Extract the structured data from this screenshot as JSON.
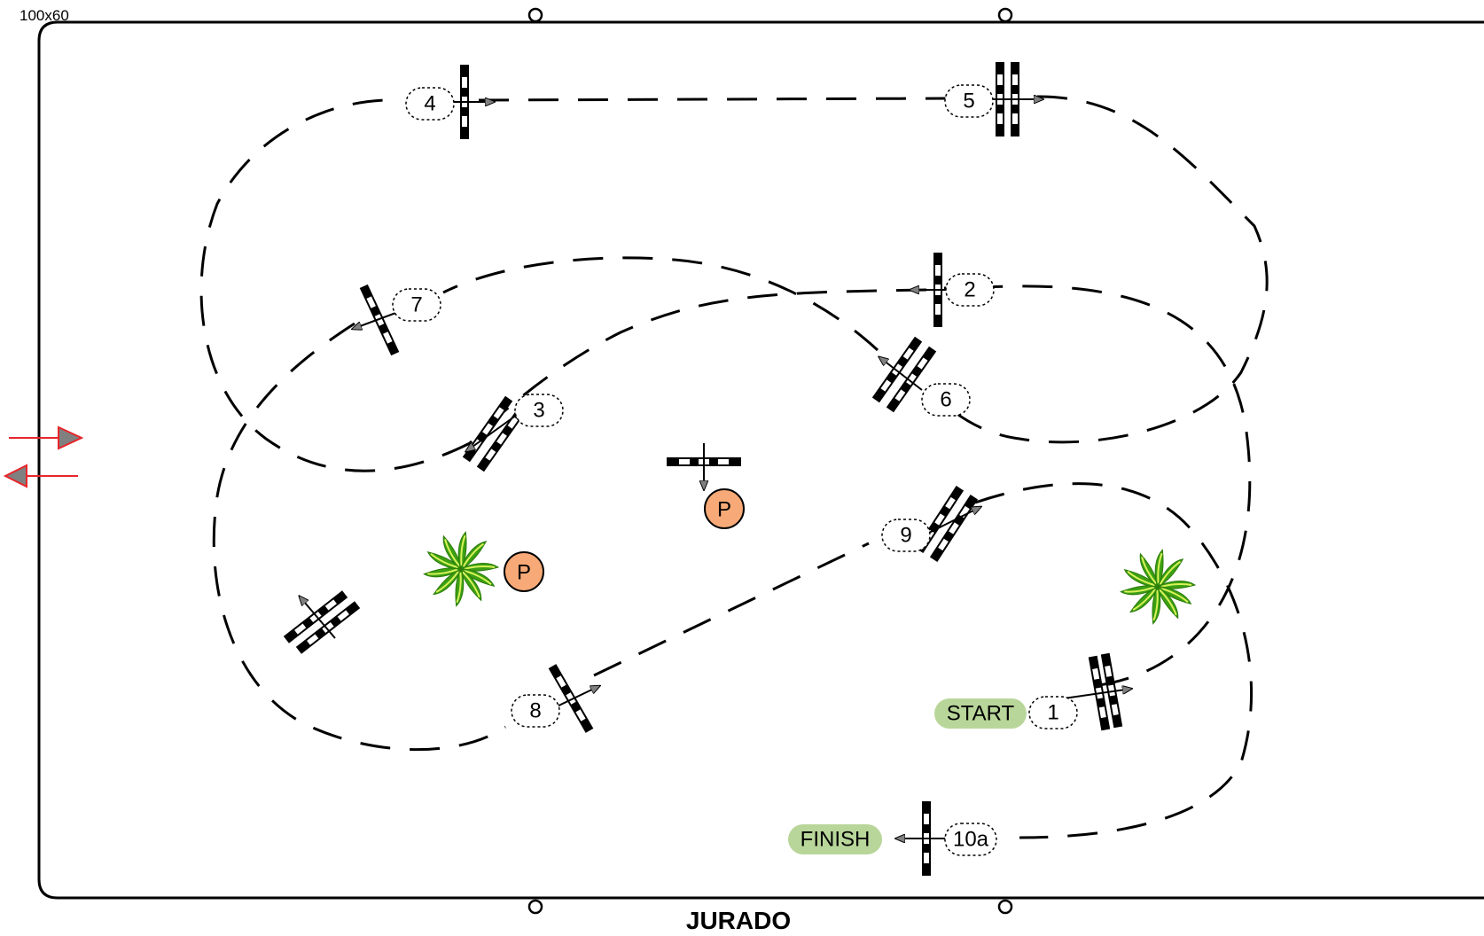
{
  "arena": {
    "size_label": "100x60",
    "judge_label": "JURADO"
  },
  "markers": {
    "start": "START",
    "finish": "FINISH",
    "pylon": "P"
  },
  "obstacles": [
    {
      "id": "1",
      "label": "1",
      "type": "oxer"
    },
    {
      "id": "2",
      "label": "2",
      "type": "vertical"
    },
    {
      "id": "3",
      "label": "3",
      "type": "oxer"
    },
    {
      "id": "4",
      "label": "4",
      "type": "vertical"
    },
    {
      "id": "5",
      "label": "5",
      "type": "oxer"
    },
    {
      "id": "6",
      "label": "6",
      "type": "oxer"
    },
    {
      "id": "7",
      "label": "7",
      "type": "vertical"
    },
    {
      "id": "8",
      "label": "8",
      "type": "vertical"
    },
    {
      "id": "9",
      "label": "9",
      "type": "oxer"
    },
    {
      "id": "10a",
      "label": "10a",
      "type": "vertical"
    }
  ],
  "colors": {
    "arena_border": "#000000",
    "entry_arrows": "#e8252b",
    "start_finish_fill": "#b9d69a",
    "pylon_fill": "#f7aa77",
    "plant_green": "#3ba012",
    "plant_light": "#d9f25a"
  }
}
